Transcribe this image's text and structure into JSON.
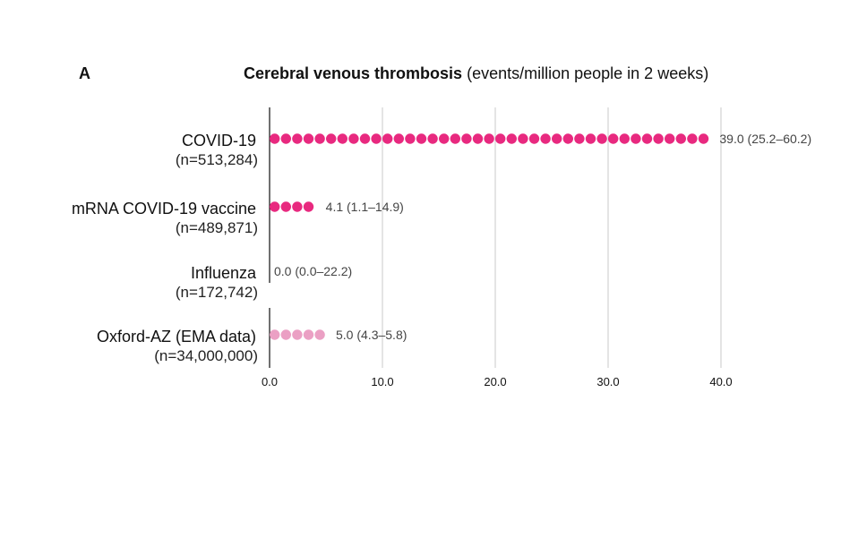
{
  "panel_label": "A",
  "title": {
    "bold": "Cerebral venous thrombosis",
    "rest": " (events/million people in 2 weeks)"
  },
  "chart_data": {
    "type": "bar",
    "orientation": "horizontal",
    "title": "Cerebral venous thrombosis (events/million people in 2 weeks)",
    "categories": [
      {
        "name": "COVID-19",
        "n": "(n=513,284)"
      },
      {
        "name": "mRNA COVID-19 vaccine",
        "n": "(n=489,871)"
      },
      {
        "name": "Influenza",
        "n": "(n=172,742)"
      },
      {
        "name": "Oxford-AZ (EMA data)",
        "n": "(n=34,000,000)"
      }
    ],
    "values": [
      39.0,
      4.1,
      0.0,
      5.0
    ],
    "value_labels": [
      "39.0 (25.2–60.2)",
      "4.1 (1.1–14.9)",
      "0.0 (0.0–22.2)",
      "5.0 (4.3–5.8)"
    ],
    "ci_low": [
      25.2,
      1.1,
      0.0,
      4.3
    ],
    "ci_high": [
      60.2,
      14.9,
      22.2,
      5.8
    ],
    "colors": [
      "#e8297f",
      "#e8297f",
      "#e8297f",
      "#eba0c4"
    ],
    "xlim": [
      0,
      40
    ],
    "xticks": [
      0,
      10,
      20,
      30,
      40
    ],
    "xtick_labels": [
      "0.0",
      "10.0",
      "20.0",
      "30.0",
      "40.0"
    ],
    "grid": true,
    "legend": "none"
  }
}
